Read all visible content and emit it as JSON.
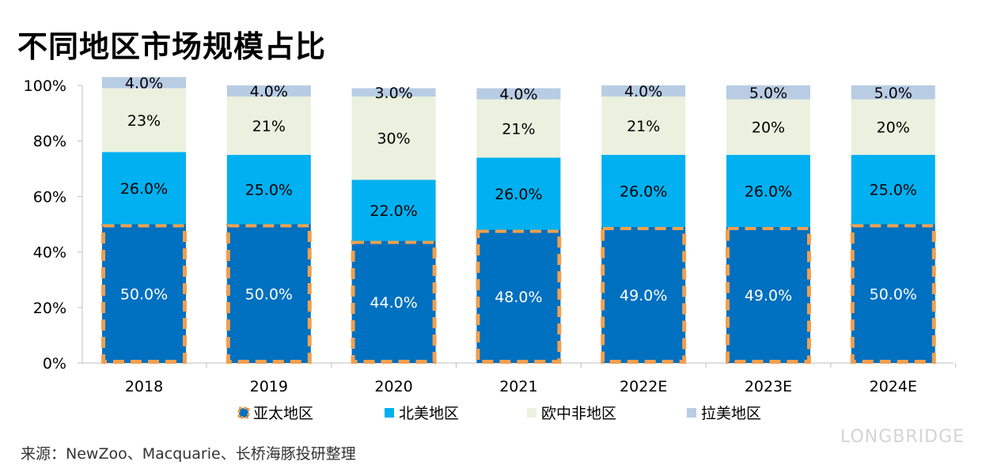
{
  "title": "不同地区市场规模占比",
  "source": "来源：NewZoo、Macquarie、长桥海豚投研整理",
  "watermark": "LONGBRIDGE",
  "colors": {
    "apac": "#0070c0",
    "apac_border": "#f0a050",
    "na": "#00b0f0",
    "emea": "#ebf1de",
    "latam": "#b8cce4",
    "label_dark": "#000000",
    "label_light": "#ffffff",
    "axis": "#bfbfbf"
  },
  "chart_data": {
    "type": "bar",
    "stacked": true,
    "title": "不同地区市场规模占比",
    "categories": [
      "2018",
      "2019",
      "2020",
      "2021",
      "2022E",
      "2023E",
      "2024E"
    ],
    "ylim": [
      0,
      100
    ],
    "yticks": [
      "0%",
      "20%",
      "40%",
      "60%",
      "80%",
      "100%"
    ],
    "ytick_values": [
      0,
      20,
      40,
      60,
      80,
      100
    ],
    "series": [
      {
        "name": "亚太地区",
        "key": "apac",
        "values": [
          50.0,
          50.0,
          44.0,
          48.0,
          49.0,
          49.0,
          50.0
        ],
        "labels": [
          "50.0%",
          "50.0%",
          "44.0%",
          "48.0%",
          "49.0%",
          "49.0%",
          "50.0%"
        ]
      },
      {
        "name": "北美地区",
        "key": "na",
        "values": [
          26.0,
          25.0,
          22.0,
          26.0,
          26.0,
          26.0,
          25.0
        ],
        "labels": [
          "26.0%",
          "25.0%",
          "22.0%",
          "26.0%",
          "26.0%",
          "26.0%",
          "25.0%"
        ]
      },
      {
        "name": "欧中非地区",
        "key": "emea",
        "values": [
          23,
          21,
          30,
          21,
          21,
          20,
          20
        ],
        "labels": [
          "23%",
          "21%",
          "30%",
          "21%",
          "21%",
          "20%",
          "20%"
        ]
      },
      {
        "name": "拉美地区",
        "key": "latam",
        "values": [
          4.0,
          4.0,
          3.0,
          4.0,
          4.0,
          5.0,
          5.0
        ],
        "labels": [
          "4.0%",
          "4.0%",
          "3.0%",
          "4.0%",
          "4.0%",
          "5.0%",
          "5.0%"
        ]
      }
    ],
    "legend_position": "bottom"
  }
}
